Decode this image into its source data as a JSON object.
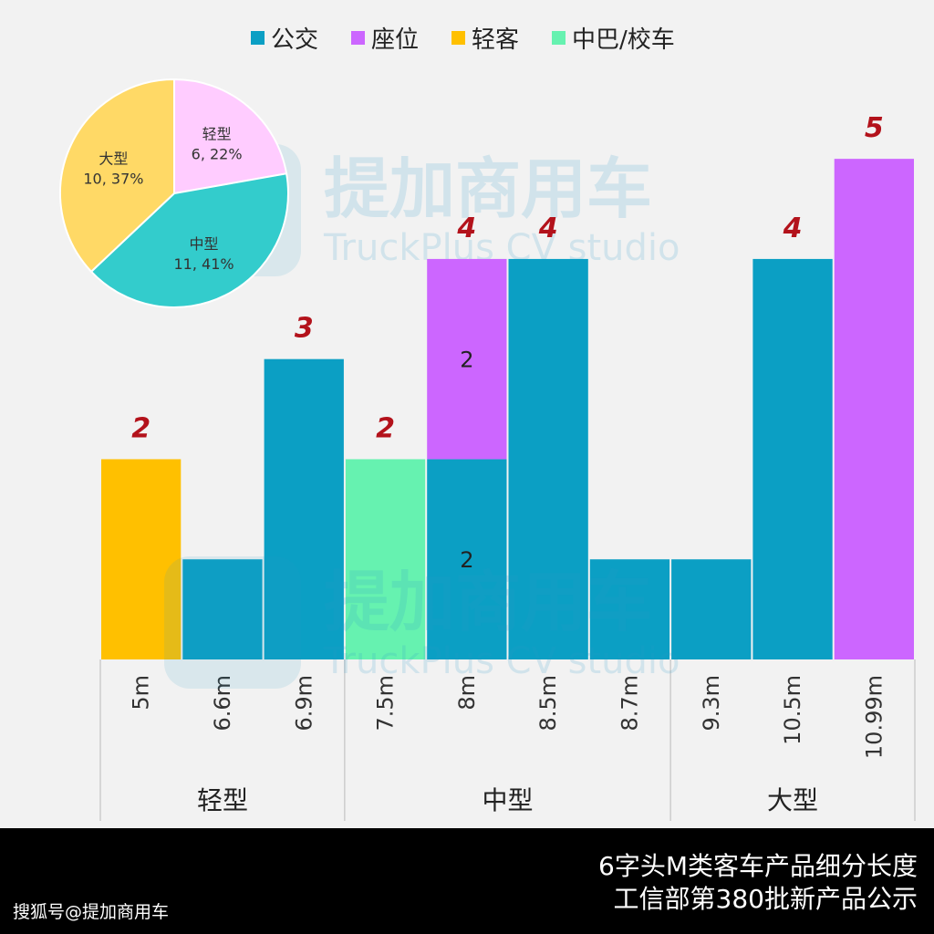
{
  "chart_data": [
    {
      "type": "bar",
      "stacked": true,
      "categories": [
        "5m",
        "6.6m",
        "6.9m",
        "7.5m",
        "8m",
        "8.5m",
        "8.7m",
        "9.3m",
        "10.5m",
        "10.99m"
      ],
      "groups": [
        {
          "label": "轻型",
          "categories": [
            "5m",
            "6.6m",
            "6.9m"
          ]
        },
        {
          "label": "中型",
          "categories": [
            "7.5m",
            "8m",
            "8.5m",
            "8.7m"
          ]
        },
        {
          "label": "大型",
          "categories": [
            "9.3m",
            "10.5m",
            "10.99m"
          ]
        }
      ],
      "series": [
        {
          "name": "公交",
          "color": "#0b9fc4",
          "values": [
            0,
            1,
            3,
            0,
            2,
            4,
            1,
            1,
            4,
            0
          ]
        },
        {
          "name": "座位",
          "color": "#cc66ff",
          "values": [
            0,
            0,
            0,
            0,
            2,
            0,
            0,
            0,
            0,
            5
          ]
        },
        {
          "name": "轻客",
          "color": "#ffc000",
          "values": [
            2,
            0,
            0,
            0,
            0,
            0,
            0,
            0,
            0,
            0
          ]
        },
        {
          "name": "中巴/校车",
          "color": "#66f2b0",
          "values": [
            0,
            0,
            0,
            2,
            0,
            0,
            0,
            0,
            0,
            0
          ]
        }
      ],
      "totals": [
        2,
        null,
        3,
        2,
        4,
        4,
        null,
        null,
        4,
        5
      ],
      "segment_labels": [
        {
          "category": "8m",
          "series": "公交",
          "text": "2"
        },
        {
          "category": "8m",
          "series": "座位",
          "text": "2"
        }
      ],
      "ylim": [
        0,
        5.3
      ],
      "legend": "top"
    },
    {
      "type": "pie",
      "slices": [
        {
          "label": "轻型",
          "value": 6,
          "percent": "22%",
          "text": "6, 22%",
          "color": "#ffccff"
        },
        {
          "label": "中型",
          "value": 11,
          "percent": "41%",
          "text": "11, 41%",
          "color": "#33cccc"
        },
        {
          "label": "大型",
          "value": 10,
          "percent": "37%",
          "text": "10, 37%",
          "color": "#ffd966"
        }
      ]
    }
  ],
  "watermark": {
    "cn": "提加商用车",
    "en": "TruckPlus CV studio"
  },
  "footer": {
    "title_line1": "6字头M类客车产品细分长度",
    "title_line2": "工信部第380批新产品公示",
    "source": "搜狐号@提加商用车"
  }
}
